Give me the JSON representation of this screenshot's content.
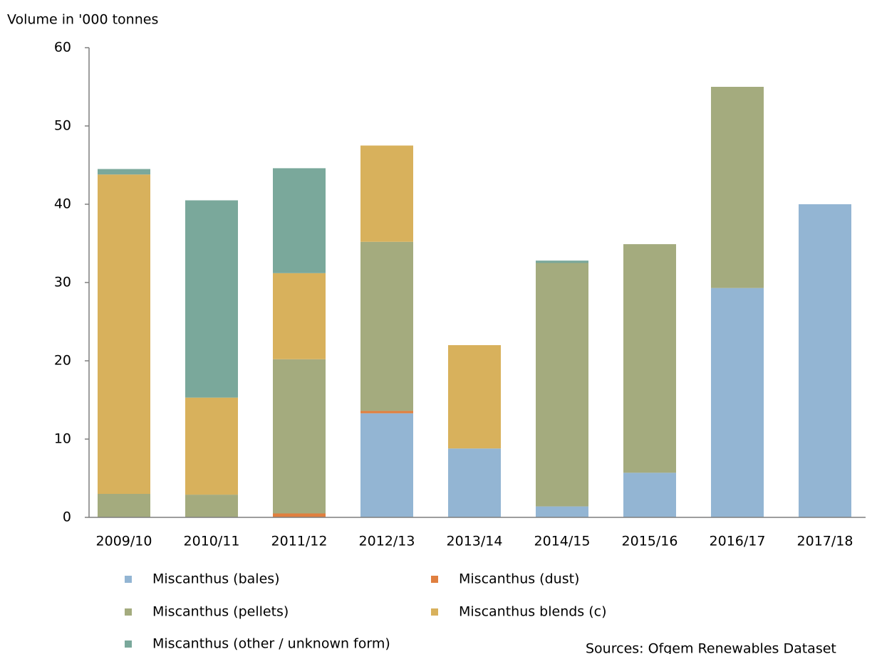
{
  "chart_data": {
    "type": "stacked_bar",
    "y_axis_label": "Volume in '000 tonnes",
    "source": "Sources: Ofgem Renewables Dataset",
    "categories": [
      "2009/10",
      "2010/11",
      "2011/12",
      "2012/13",
      "2013/14",
      "2014/15",
      "2015/16",
      "2016/17",
      "2017/18"
    ],
    "series": [
      {
        "name": "Miscanthus (bales)",
        "color": "#93b5d3",
        "values": [
          null,
          null,
          null,
          13.3,
          8.8,
          1.4,
          5.7,
          29.3,
          40.0
        ]
      },
      {
        "name": "Miscanthus (dust)",
        "color": "#e07f3f",
        "values": [
          null,
          null,
          0.5,
          0.3,
          null,
          null,
          null,
          null,
          null
        ]
      },
      {
        "name": "Miscanthus (pellets)",
        "color": "#a4ab7e",
        "values": [
          3.0,
          2.9,
          19.7,
          21.6,
          null,
          31.1,
          29.2,
          25.7,
          null
        ]
      },
      {
        "name": "Miscanthus blends (c)",
        "color": "#d8b15c",
        "values": [
          40.8,
          12.4,
          11.0,
          12.3,
          13.2,
          null,
          null,
          null,
          null
        ]
      },
      {
        "name": "Miscanthus (other / unknown form)",
        "color": "#7aa89b",
        "values": [
          0.7,
          25.2,
          13.4,
          null,
          null,
          0.3,
          null,
          null,
          null
        ]
      }
    ],
    "ylim": [
      0,
      60
    ],
    "yticks": [
      0,
      10,
      20,
      30,
      40,
      50,
      60
    ],
    "grid": false
  }
}
